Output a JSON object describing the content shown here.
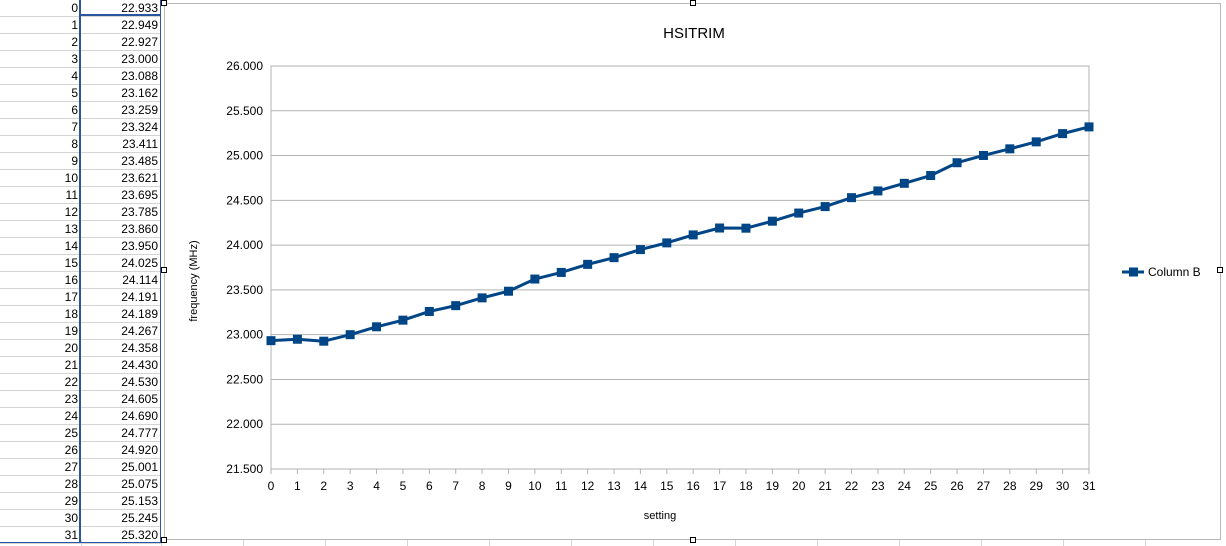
{
  "sheet": {
    "column_a": [
      "0",
      "1",
      "2",
      "3",
      "4",
      "5",
      "6",
      "7",
      "8",
      "9",
      "10",
      "11",
      "12",
      "13",
      "14",
      "15",
      "16",
      "17",
      "18",
      "19",
      "20",
      "21",
      "22",
      "23",
      "24",
      "25",
      "26",
      "27",
      "28",
      "29",
      "30",
      "31"
    ],
    "column_b": [
      "22.933",
      "22.949",
      "22.927",
      "23.000",
      "23.088",
      "23.162",
      "23.259",
      "23.324",
      "23.411",
      "23.485",
      "23.621",
      "23.695",
      "23.785",
      "23.860",
      "23.950",
      "24.025",
      "24.114",
      "24.191",
      "24.189",
      "24.267",
      "24.358",
      "24.430",
      "24.530",
      "24.605",
      "24.690",
      "24.777",
      "24.920",
      "25.001",
      "25.075",
      "25.153",
      "25.245",
      "25.320"
    ]
  },
  "chart_data": {
    "type": "line",
    "title": "HSITRIM",
    "xlabel": "setting",
    "ylabel": "frequency (MHz)",
    "x": [
      0,
      1,
      2,
      3,
      4,
      5,
      6,
      7,
      8,
      9,
      10,
      11,
      12,
      13,
      14,
      15,
      16,
      17,
      18,
      19,
      20,
      21,
      22,
      23,
      24,
      25,
      26,
      27,
      28,
      29,
      30,
      31
    ],
    "x_tick_labels": [
      "0",
      "1",
      "2",
      "3",
      "4",
      "5",
      "6",
      "7",
      "8",
      "9",
      "10",
      "11",
      "12",
      "13",
      "14",
      "15",
      "16",
      "17",
      "18",
      "19",
      "20",
      "21",
      "22",
      "23",
      "24",
      "25",
      "26",
      "27",
      "28",
      "29",
      "30",
      "31"
    ],
    "y_tick_labels": [
      "21.500",
      "22.000",
      "22.500",
      "23.000",
      "23.500",
      "24.000",
      "24.500",
      "25.000",
      "25.500",
      "26.000"
    ],
    "y_ticks": [
      21.5,
      22.0,
      22.5,
      23.0,
      23.5,
      24.0,
      24.5,
      25.0,
      25.5,
      26.0
    ],
    "ylim": [
      21.5,
      26.0
    ],
    "xlim": [
      0,
      31
    ],
    "grid": true,
    "legend_position": "right",
    "series": [
      {
        "name": "Column B",
        "color": "#004586",
        "marker": "square",
        "values": [
          22.933,
          22.949,
          22.927,
          23.0,
          23.088,
          23.162,
          23.259,
          23.324,
          23.411,
          23.485,
          23.621,
          23.695,
          23.785,
          23.86,
          23.95,
          24.025,
          24.114,
          24.191,
          24.189,
          24.267,
          24.358,
          24.43,
          24.53,
          24.605,
          24.69,
          24.777,
          24.92,
          25.001,
          25.075,
          25.153,
          25.245,
          25.32
        ]
      }
    ]
  }
}
